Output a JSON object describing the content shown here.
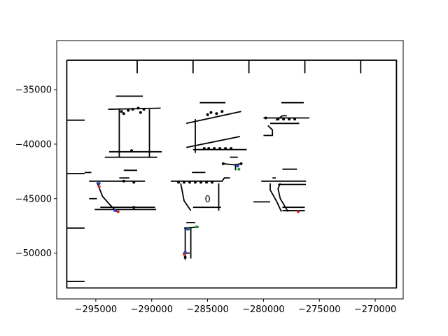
{
  "chart_data": {
    "type": "line",
    "title": "",
    "xlabel": "",
    "ylabel": "",
    "xlim": [
      -298500,
      -267500
    ],
    "ylim": [
      -54200,
      -30500
    ],
    "grid": false,
    "legend": "none",
    "xticks": [
      -295000,
      -290000,
      -285000,
      -280000,
      -275000,
      -270000
    ],
    "xtick_labels": [
      "−295000",
      "−290000",
      "−285000",
      "−280000",
      "−275000",
      "−270000"
    ],
    "yticks": [
      -35000,
      -40000,
      -45000,
      -50000
    ],
    "ytick_labels": [
      "−35000",
      "−40000",
      "−45000",
      "−50000"
    ],
    "series": [
      {
        "values": [
          [
            -297600,
            -32300
          ],
          [
            -268100,
            -32300
          ],
          [
            -268100,
            -53200
          ],
          [
            -297600,
            -53200
          ],
          [
            -297600,
            -32300
          ]
        ]
      },
      {
        "values": [
          [
            -291300,
            -32300
          ],
          [
            -291300,
            -33500
          ]
        ]
      },
      {
        "values": [
          [
            -286300,
            -32300
          ],
          [
            -286300,
            -33500
          ]
        ]
      },
      {
        "values": [
          [
            -281300,
            -32300
          ],
          [
            -281300,
            -33500
          ]
        ]
      },
      {
        "values": [
          [
            -276300,
            -32300
          ],
          [
            -276300,
            -33500
          ]
        ]
      },
      {
        "values": [
          [
            -271300,
            -32300
          ],
          [
            -271300,
            -33500
          ]
        ]
      },
      {
        "values": [
          [
            -297600,
            -37800
          ],
          [
            -296000,
            -37800
          ]
        ]
      },
      {
        "values": [
          [
            -297600,
            -42700
          ],
          [
            -296000,
            -42700
          ]
        ]
      },
      {
        "values": [
          [
            -297600,
            -47700
          ],
          [
            -296000,
            -47700
          ]
        ]
      },
      {
        "values": [
          [
            -297600,
            -52600
          ],
          [
            -296000,
            -52600
          ]
        ]
      },
      {
        "values": [
          [
            -293200,
            -35600
          ],
          [
            -290800,
            -35600
          ]
        ]
      },
      {
        "values": [
          [
            -293900,
            -36800
          ],
          [
            -289200,
            -36700
          ]
        ]
      },
      {
        "values": [
          [
            -292900,
            -36800
          ],
          [
            -292900,
            -41200
          ]
        ]
      },
      {
        "values": [
          [
            -290200,
            -36800
          ],
          [
            -290200,
            -41200
          ]
        ]
      },
      {
        "values": [
          [
            -293800,
            -40700
          ],
          [
            -289400,
            -40700
          ],
          [
            -289100,
            -40700
          ]
        ]
      },
      {
        "values": [
          [
            -294200,
            -41200
          ],
          [
            -289500,
            -41200
          ]
        ]
      },
      {
        "values": [
          [
            -285700,
            -36200
          ],
          [
            -283400,
            -36200
          ]
        ]
      },
      {
        "values": [
          [
            -286900,
            -38100
          ],
          [
            -282000,
            -37000
          ]
        ]
      },
      {
        "values": [
          [
            -286100,
            -37700
          ],
          [
            -286100,
            -40800
          ]
        ]
      },
      {
        "values": [
          [
            -286900,
            -40300
          ],
          [
            -282100,
            -39300
          ]
        ]
      },
      {
        "values": [
          [
            -286300,
            -40500
          ],
          [
            -281500,
            -40500
          ]
        ]
      },
      {
        "values": [
          [
            -278400,
            -36200
          ],
          [
            -276400,
            -36200
          ]
        ]
      },
      {
        "values": [
          [
            -280000,
            -37600
          ],
          [
            -275900,
            -37600
          ]
        ]
      },
      {
        "values": [
          [
            -278900,
            -37800
          ],
          [
            -278300,
            -37400
          ],
          [
            -277900,
            -37400
          ]
        ]
      },
      {
        "values": [
          [
            -279400,
            -38100
          ],
          [
            -276800,
            -38100
          ]
        ]
      },
      {
        "values": [
          [
            -279600,
            -38300
          ],
          [
            -279200,
            -38700
          ],
          [
            -279200,
            -39200
          ],
          [
            -280000,
            -39200
          ]
        ]
      },
      {
        "values": [
          [
            -283000,
            -41200
          ],
          [
            -282300,
            -41200
          ]
        ]
      },
      {
        "values": [
          [
            -283600,
            -41800
          ],
          [
            -282600,
            -41900
          ],
          [
            -282000,
            -41800
          ]
        ]
      },
      {
        "values": [
          [
            -282500,
            -41900
          ],
          [
            -282500,
            -42400
          ]
        ]
      },
      {
        "values": [
          [
            -296000,
            -42600
          ],
          [
            -295400,
            -42600
          ]
        ]
      },
      {
        "values": [
          [
            -292500,
            -42400
          ],
          [
            -291300,
            -42400
          ]
        ]
      },
      {
        "values": [
          [
            -292900,
            -43100
          ],
          [
            -292000,
            -43100
          ]
        ]
      },
      {
        "values": [
          [
            -295600,
            -43400
          ],
          [
            -290600,
            -43400
          ]
        ]
      },
      {
        "values": [
          [
            -294900,
            -43500
          ],
          [
            -294400,
            -44800
          ],
          [
            -293700,
            -45600
          ],
          [
            -293100,
            -46200
          ]
        ]
      },
      {
        "values": [
          [
            -294600,
            -45800
          ],
          [
            -289700,
            -45800
          ]
        ]
      },
      {
        "values": [
          [
            -295100,
            -46000
          ],
          [
            -289600,
            -46000
          ]
        ]
      },
      {
        "values": [
          [
            -295600,
            -45000
          ],
          [
            -294900,
            -45000
          ]
        ]
      },
      {
        "values": [
          [
            -286400,
            -42600
          ],
          [
            -285200,
            -42600
          ]
        ]
      },
      {
        "values": [
          [
            -288300,
            -43400
          ],
          [
            -283700,
            -43400
          ],
          [
            -283500,
            -43100
          ],
          [
            -283000,
            -43100
          ]
        ]
      },
      {
        "values": [
          [
            -287400,
            -43600
          ],
          [
            -287100,
            -45200
          ],
          [
            -286500,
            -46100
          ]
        ]
      },
      {
        "values": [
          [
            -286300,
            -45800
          ],
          [
            -283800,
            -45800
          ]
        ]
      },
      {
        "values": [
          [
            -284000,
            -43600
          ],
          [
            -284000,
            -46100
          ]
        ]
      },
      {
        "values": [
          [
            -278300,
            -42300
          ],
          [
            -277000,
            -42300
          ]
        ]
      },
      {
        "values": [
          [
            -280200,
            -43400
          ],
          [
            -276200,
            -43400
          ]
        ]
      },
      {
        "values": [
          [
            -279200,
            -43100
          ],
          [
            -278900,
            -43100
          ]
        ]
      },
      {
        "values": [
          [
            -278700,
            -43700
          ],
          [
            -276200,
            -43700
          ]
        ]
      },
      {
        "values": [
          [
            -278500,
            -43600
          ],
          [
            -278700,
            -44100
          ],
          [
            -278500,
            -45000
          ],
          [
            -277800,
            -46200
          ]
        ]
      },
      {
        "values": [
          [
            -279400,
            -43600
          ],
          [
            -279400,
            -44200
          ],
          [
            -278800,
            -45300
          ],
          [
            -278400,
            -46200
          ]
        ]
      },
      {
        "values": [
          [
            -280900,
            -45300
          ],
          [
            -279400,
            -45300
          ]
        ]
      },
      {
        "values": [
          [
            -278300,
            -45800
          ],
          [
            -276300,
            -45800
          ]
        ]
      },
      {
        "values": [
          [
            -278300,
            -46100
          ],
          [
            -276300,
            -46100
          ]
        ]
      },
      {
        "values": [
          [
            -286900,
            -47200
          ],
          [
            -286100,
            -47200
          ]
        ]
      },
      {
        "values": [
          [
            -287000,
            -47700
          ],
          [
            -287000,
            -50600
          ]
        ]
      },
      {
        "values": [
          [
            -286500,
            -47700
          ],
          [
            -286500,
            -50500
          ]
        ]
      },
      {
        "values": [
          [
            -287100,
            -47700
          ],
          [
            -285800,
            -47600
          ]
        ]
      },
      {
        "values": [
          [
            -287200,
            -50000
          ],
          [
            -286600,
            -50000
          ]
        ]
      }
    ],
    "markers": [
      {
        "color": "#000000",
        "points": [
          [
            -292700,
            -37000
          ],
          [
            -292500,
            -37200
          ],
          [
            -292100,
            -36900
          ],
          [
            -291700,
            -36800
          ],
          [
            -291000,
            -37100
          ],
          [
            -291200,
            -36700
          ],
          [
            -290700,
            -36800
          ],
          [
            -291800,
            -40600
          ],
          [
            -285000,
            -37300
          ],
          [
            -284700,
            -37100
          ],
          [
            -284200,
            -37200
          ],
          [
            -283700,
            -37000
          ],
          [
            -285300,
            -40400
          ],
          [
            -284900,
            -40400
          ],
          [
            -284400,
            -40400
          ],
          [
            -283900,
            -40400
          ],
          [
            -283400,
            -40400
          ],
          [
            -282900,
            -40400
          ],
          [
            -279800,
            -37600
          ],
          [
            -278700,
            -37700
          ],
          [
            -278200,
            -37700
          ],
          [
            -277700,
            -37700
          ],
          [
            -277200,
            -37700
          ],
          [
            -283600,
            -41800
          ],
          [
            -282000,
            -41800
          ],
          [
            -291600,
            -43500
          ],
          [
            -292500,
            -43400
          ],
          [
            -291600,
            -45800
          ],
          [
            -287600,
            -43500
          ],
          [
            -287100,
            -43500
          ],
          [
            -286600,
            -43500
          ],
          [
            -286100,
            -43500
          ],
          [
            -285600,
            -43500
          ],
          [
            -285100,
            -43500
          ],
          [
            -284600,
            -43500
          ],
          [
            -287000,
            -50400
          ]
        ]
      },
      {
        "color": "#1f9a2e",
        "points": [
          [
            -282200,
            -42300
          ],
          [
            -286000,
            -47600
          ],
          [
            -286700,
            -47800
          ]
        ]
      },
      {
        "color": "#2a3fd6",
        "points": [
          [
            -282300,
            -42000
          ],
          [
            -294700,
            -43600
          ],
          [
            -293300,
            -46100
          ],
          [
            -286800,
            -47800
          ],
          [
            -287000,
            -49900
          ]
        ]
      },
      {
        "color": "#d62728",
        "points": [
          [
            -294700,
            -43900
          ],
          [
            -293000,
            -46200
          ],
          [
            -276900,
            -46200
          ],
          [
            -287100,
            -50100
          ]
        ]
      }
    ],
    "text_marks": [
      {
        "text": "0",
        "x": -285000,
        "y": -45000
      }
    ]
  }
}
